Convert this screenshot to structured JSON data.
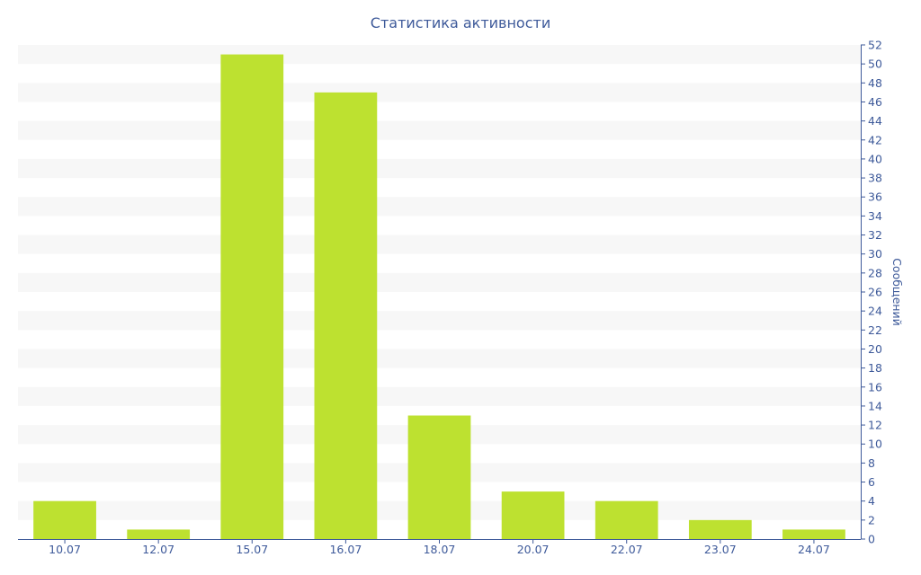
{
  "chart_data": {
    "type": "bar",
    "title": "Статистика активности",
    "xlabel": "",
    "ylabel": "Сообщений",
    "categories": [
      "10.07",
      "12.07",
      "15.07",
      "16.07",
      "18.07",
      "20.07",
      "22.07",
      "23.07",
      "24.07"
    ],
    "values": [
      4,
      1,
      51,
      47,
      13,
      5,
      4,
      2,
      1
    ],
    "ylim": [
      0,
      52
    ],
    "ytick_step": 2,
    "yaxis_position": "right",
    "grid": "alternating horizontal bands",
    "bar_color": "#bde130",
    "text_color": "#3e5a9a"
  }
}
